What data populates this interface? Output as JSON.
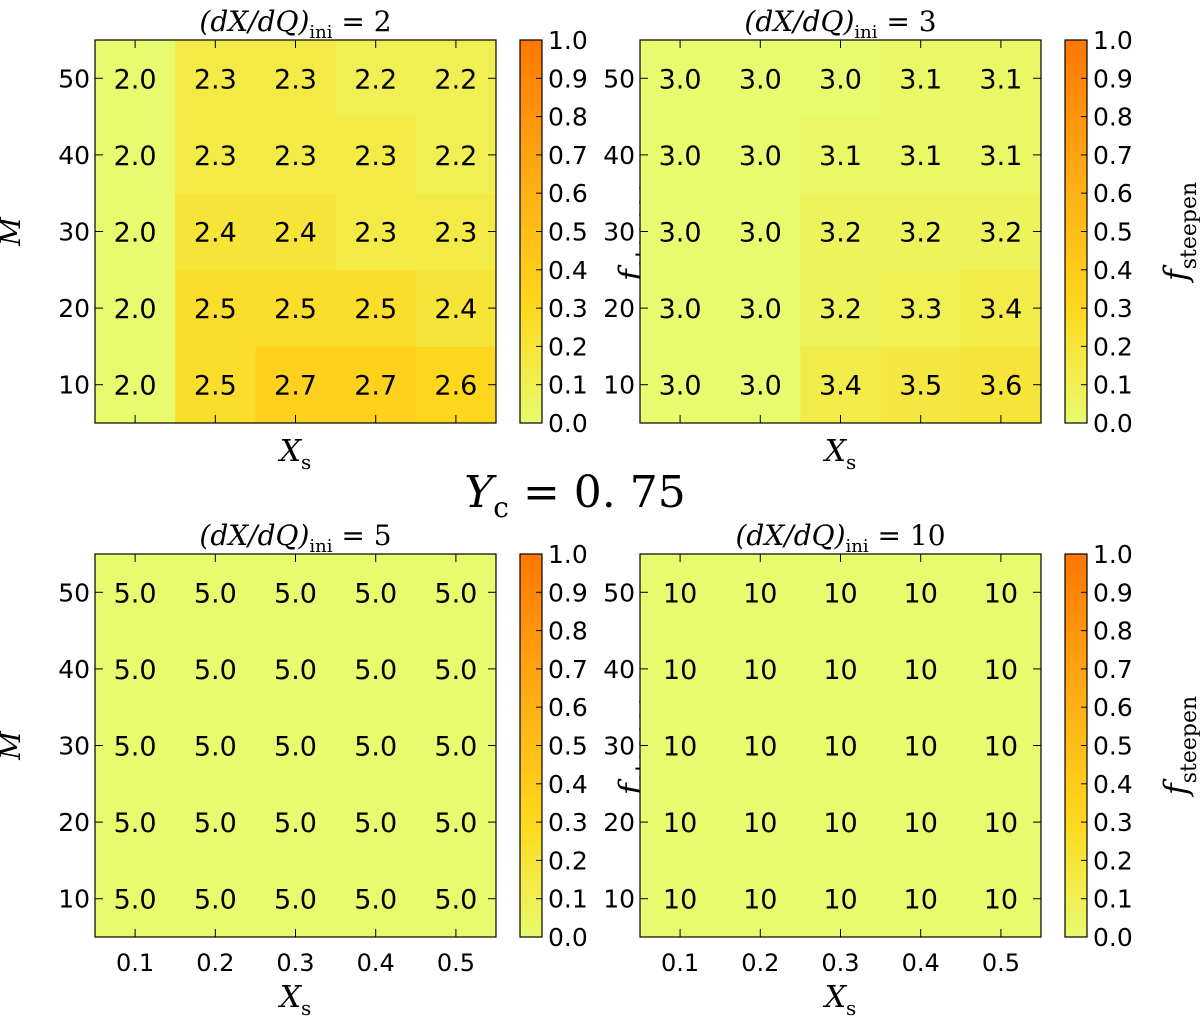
{
  "figure": {
    "center_label": {
      "main": "Y",
      "sub": "c",
      "rest": " = 0. 75"
    }
  },
  "chart_data": [
    {
      "type": "heatmap",
      "title": {
        "pre": "(dX/dQ)",
        "sub": "ini",
        "post": " = 2"
      },
      "xlabel": {
        "main": "X",
        "sub": "s"
      },
      "ylabel": "M",
      "show_xtick_labels": false,
      "x": [
        0.1,
        0.2,
        0.3,
        0.4,
        0.5
      ],
      "y": [
        10,
        20,
        30,
        40,
        50
      ],
      "x_ticks": [
        "0.1",
        "0.2",
        "0.3",
        "0.4",
        "0.5"
      ],
      "y_ticks": [
        "10",
        "20",
        "30",
        "40",
        "50"
      ],
      "xlim": [
        0.05,
        0.55
      ],
      "ylim": [
        5,
        55
      ],
      "labels": [
        [
          "2.0",
          "2.5",
          "2.7",
          "2.7",
          "2.6"
        ],
        [
          "2.0",
          "2.5",
          "2.5",
          "2.5",
          "2.4"
        ],
        [
          "2.0",
          "2.4",
          "2.4",
          "2.3",
          "2.3"
        ],
        [
          "2.0",
          "2.3",
          "2.3",
          "2.3",
          "2.2"
        ],
        [
          "2.0",
          "2.3",
          "2.3",
          "2.2",
          "2.2"
        ]
      ],
      "f_steepen": [
        [
          0.0,
          0.25,
          0.35,
          0.35,
          0.3
        ],
        [
          0.0,
          0.25,
          0.25,
          0.25,
          0.2
        ],
        [
          0.0,
          0.2,
          0.2,
          0.15,
          0.15
        ],
        [
          0.0,
          0.15,
          0.15,
          0.15,
          0.1
        ],
        [
          0.0,
          0.15,
          0.15,
          0.1,
          0.1
        ]
      ],
      "colorbar": {
        "label": {
          "main": "f",
          "sub": "steepen"
        },
        "range": [
          0.0,
          1.0
        ],
        "ticks": [
          "0.0",
          "0.1",
          "0.2",
          "0.3",
          "0.4",
          "0.5",
          "0.6",
          "0.7",
          "0.8",
          "0.9",
          "1.0"
        ]
      }
    },
    {
      "type": "heatmap",
      "title": {
        "pre": "(dX/dQ)",
        "sub": "ini",
        "post": " = 3"
      },
      "xlabel": {
        "main": "X",
        "sub": "s"
      },
      "ylabel": "",
      "show_xtick_labels": false,
      "x": [
        0.1,
        0.2,
        0.3,
        0.4,
        0.5
      ],
      "y": [
        10,
        20,
        30,
        40,
        50
      ],
      "x_ticks": [
        "0.1",
        "0.2",
        "0.3",
        "0.4",
        "0.5"
      ],
      "y_ticks": [
        "10",
        "20",
        "30",
        "40",
        "50"
      ],
      "xlim": [
        0.05,
        0.55
      ],
      "ylim": [
        5,
        55
      ],
      "labels": [
        [
          "3.0",
          "3.0",
          "3.4",
          "3.5",
          "3.6"
        ],
        [
          "3.0",
          "3.0",
          "3.2",
          "3.3",
          "3.4"
        ],
        [
          "3.0",
          "3.0",
          "3.2",
          "3.2",
          "3.2"
        ],
        [
          "3.0",
          "3.0",
          "3.1",
          "3.1",
          "3.1"
        ],
        [
          "3.0",
          "3.0",
          "3.0",
          "3.1",
          "3.1"
        ]
      ],
      "f_steepen": [
        [
          0.0,
          0.0,
          0.13,
          0.17,
          0.2
        ],
        [
          0.0,
          0.0,
          0.07,
          0.1,
          0.13
        ],
        [
          0.0,
          0.0,
          0.07,
          0.07,
          0.07
        ],
        [
          0.0,
          0.0,
          0.03,
          0.03,
          0.03
        ],
        [
          0.0,
          0.0,
          0.0,
          0.03,
          0.03
        ]
      ],
      "colorbar": {
        "label": {
          "main": "f",
          "sub": "steepen"
        },
        "range": [
          0.0,
          1.0
        ],
        "ticks": [
          "0.0",
          "0.1",
          "0.2",
          "0.3",
          "0.4",
          "0.5",
          "0.6",
          "0.7",
          "0.8",
          "0.9",
          "1.0"
        ]
      }
    },
    {
      "type": "heatmap",
      "title": {
        "pre": "(dX/dQ)",
        "sub": "ini",
        "post": " = 5"
      },
      "xlabel": {
        "main": "X",
        "sub": "s"
      },
      "ylabel": "M",
      "show_xtick_labels": true,
      "x": [
        0.1,
        0.2,
        0.3,
        0.4,
        0.5
      ],
      "y": [
        10,
        20,
        30,
        40,
        50
      ],
      "x_ticks": [
        "0.1",
        "0.2",
        "0.3",
        "0.4",
        "0.5"
      ],
      "y_ticks": [
        "10",
        "20",
        "30",
        "40",
        "50"
      ],
      "xlim": [
        0.05,
        0.55
      ],
      "ylim": [
        5,
        55
      ],
      "labels": [
        [
          "5.0",
          "5.0",
          "5.0",
          "5.0",
          "5.0"
        ],
        [
          "5.0",
          "5.0",
          "5.0",
          "5.0",
          "5.0"
        ],
        [
          "5.0",
          "5.0",
          "5.0",
          "5.0",
          "5.0"
        ],
        [
          "5.0",
          "5.0",
          "5.0",
          "5.0",
          "5.0"
        ],
        [
          "5.0",
          "5.0",
          "5.0",
          "5.0",
          "5.0"
        ]
      ],
      "f_steepen": [
        [
          0.0,
          0.0,
          0.0,
          0.0,
          0.0
        ],
        [
          0.0,
          0.0,
          0.0,
          0.0,
          0.0
        ],
        [
          0.0,
          0.0,
          0.0,
          0.0,
          0.0
        ],
        [
          0.0,
          0.0,
          0.0,
          0.0,
          0.0
        ],
        [
          0.0,
          0.0,
          0.0,
          0.0,
          0.0
        ]
      ],
      "colorbar": {
        "label": {
          "main": "f",
          "sub": "steepen"
        },
        "range": [
          0.0,
          1.0
        ],
        "ticks": [
          "0.0",
          "0.1",
          "0.2",
          "0.3",
          "0.4",
          "0.5",
          "0.6",
          "0.7",
          "0.8",
          "0.9",
          "1.0"
        ]
      }
    },
    {
      "type": "heatmap",
      "title": {
        "pre": "(dX/dQ)",
        "sub": "ini",
        "post": " = 10"
      },
      "xlabel": {
        "main": "X",
        "sub": "s"
      },
      "ylabel": "",
      "show_xtick_labels": true,
      "x": [
        0.1,
        0.2,
        0.3,
        0.4,
        0.5
      ],
      "y": [
        10,
        20,
        30,
        40,
        50
      ],
      "x_ticks": [
        "0.1",
        "0.2",
        "0.3",
        "0.4",
        "0.5"
      ],
      "y_ticks": [
        "10",
        "20",
        "30",
        "40",
        "50"
      ],
      "xlim": [
        0.05,
        0.55
      ],
      "ylim": [
        5,
        55
      ],
      "labels": [
        [
          "10",
          "10",
          "10",
          "10",
          "10"
        ],
        [
          "10",
          "10",
          "10",
          "10",
          "10"
        ],
        [
          "10",
          "10",
          "10",
          "10",
          "10"
        ],
        [
          "10",
          "10",
          "10",
          "10",
          "10"
        ],
        [
          "10",
          "10",
          "10",
          "10",
          "10"
        ]
      ],
      "f_steepen": [
        [
          0.0,
          0.0,
          0.0,
          0.0,
          0.0
        ],
        [
          0.0,
          0.0,
          0.0,
          0.0,
          0.0
        ],
        [
          0.0,
          0.0,
          0.0,
          0.0,
          0.0
        ],
        [
          0.0,
          0.0,
          0.0,
          0.0,
          0.0
        ],
        [
          0.0,
          0.0,
          0.0,
          0.0,
          0.0
        ]
      ],
      "colorbar": {
        "label": {
          "main": "f",
          "sub": "steepen"
        },
        "range": [
          0.0,
          1.0
        ],
        "ticks": [
          "0.0",
          "0.1",
          "0.2",
          "0.3",
          "0.4",
          "0.5",
          "0.6",
          "0.7",
          "0.8",
          "0.9",
          "1.0"
        ]
      }
    }
  ]
}
